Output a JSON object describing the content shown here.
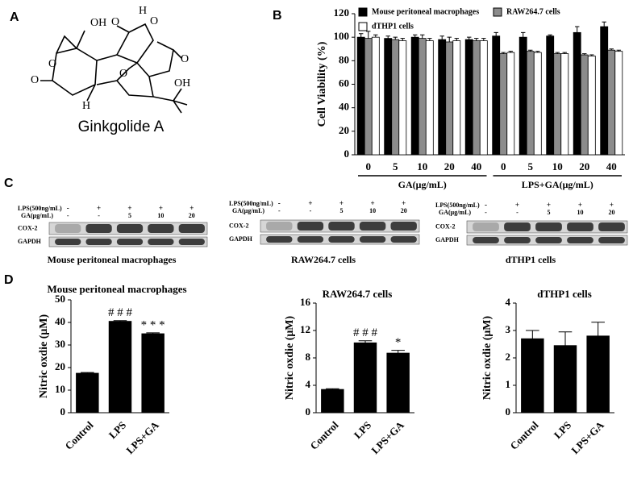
{
  "panels": [
    "A",
    "B",
    "C",
    "D"
  ],
  "molecule": {
    "name": "Ginkgolide A",
    "atoms": [
      "OH",
      "O",
      "H",
      "O",
      "O",
      "O",
      "OH",
      "H",
      "O",
      "O"
    ]
  },
  "blots": [
    {
      "title": "Mouse peritoneal macrophages",
      "lps_label": "LPS(500ng/mL)",
      "ga_label": "GA(μg/mL)",
      "lps": [
        "-",
        "+",
        "+",
        "+",
        "+"
      ],
      "ga": [
        "-",
        "-",
        "5",
        "10",
        "20"
      ],
      "rows": [
        "COX-2",
        "GAPDH"
      ]
    },
    {
      "title": "RAW264.7 cells",
      "lps_label": "LPS(500ng/mL)",
      "ga_label": "GA(μg/mL)",
      "lps": [
        "-",
        "+",
        "+",
        "+",
        "+"
      ],
      "ga": [
        "-",
        "-",
        "5",
        "10",
        "20"
      ],
      "rows": [
        "COX-2",
        "GAPDH"
      ]
    },
    {
      "title": "dTHP1 cells",
      "lps_label": "LPS(500ng/mL)",
      "ga_label": "GA(μg/mL)",
      "lps": [
        "-",
        "+",
        "+",
        "+",
        "+"
      ],
      "ga": [
        "-",
        "-",
        "5",
        "10",
        "20"
      ],
      "rows": [
        "COX-2",
        "GAPDH"
      ]
    }
  ],
  "chart_data": [
    {
      "type": "bar",
      "ylabel": "Cell Viability (%)",
      "categories": [
        "0",
        "5",
        "10",
        "20",
        "40",
        "0",
        "5",
        "10",
        "20",
        "40"
      ],
      "category_groups": [
        "GA(μg/mL)",
        "LPS+GA(μg/mL)"
      ],
      "series": [
        {
          "name": "Mouse peritoneal macrophages",
          "color": "#000000",
          "values": [
            100,
            99,
            100,
            98,
            98,
            101,
            100,
            101,
            104,
            109
          ],
          "errors": [
            3,
            2,
            2,
            3,
            2,
            3,
            4,
            1,
            5,
            4
          ]
        },
        {
          "name": "RAW264.7 cells",
          "color": "#8c8c8c",
          "values": [
            99,
            98,
            99,
            96,
            97,
            86,
            88,
            86,
            85,
            89
          ],
          "errors": [
            6,
            2,
            3,
            4,
            2,
            1,
            1,
            1,
            1,
            1
          ]
        },
        {
          "name": "dTHP1 cells",
          "color": "#ffffff",
          "values": [
            100,
            97,
            97,
            97,
            97,
            87,
            87,
            86,
            84,
            88
          ],
          "errors": [
            2,
            2,
            2,
            2,
            2,
            1,
            1,
            1,
            1,
            1
          ]
        }
      ],
      "ylim": [
        0,
        120
      ],
      "yticks": [
        0,
        20,
        40,
        60,
        80,
        100,
        120
      ]
    },
    {
      "type": "bar",
      "title": "Mouse peritoneal macrophages",
      "ylabel": "Nitric oxdie (μM)",
      "categories": [
        "Control",
        "LPS",
        "LPS+GA"
      ],
      "values": [
        17.5,
        40.5,
        35
      ],
      "errors": [
        0.3,
        0.3,
        0.4
      ],
      "annotations": [
        null,
        "# # #",
        "* * *"
      ],
      "color": "#000000",
      "ylim": [
        0,
        50
      ],
      "yticks": [
        0,
        10,
        20,
        30,
        40,
        50
      ]
    },
    {
      "type": "bar",
      "title": "RAW264.7 cells",
      "ylabel": "Nitric oxdie (μM)",
      "categories": [
        "Control",
        "LPS",
        "LPS+GA"
      ],
      "values": [
        3.4,
        10.2,
        8.7
      ],
      "errors": [
        0.1,
        0.3,
        0.4
      ],
      "annotations": [
        null,
        "# # #",
        "*"
      ],
      "color": "#000000",
      "ylim": [
        0,
        16
      ],
      "yticks": [
        0,
        4,
        8,
        12,
        16
      ]
    },
    {
      "type": "bar",
      "title": "dTHP1 cells",
      "ylabel": "Nitric oxdie (μM)",
      "categories": [
        "Control",
        "LPS",
        "LPS+GA"
      ],
      "values": [
        2.7,
        2.45,
        2.8
      ],
      "errors": [
        0.3,
        0.5,
        0.5
      ],
      "color": "#000000",
      "ylim": [
        0,
        4
      ],
      "yticks": [
        0,
        1,
        2,
        3,
        4
      ]
    }
  ]
}
